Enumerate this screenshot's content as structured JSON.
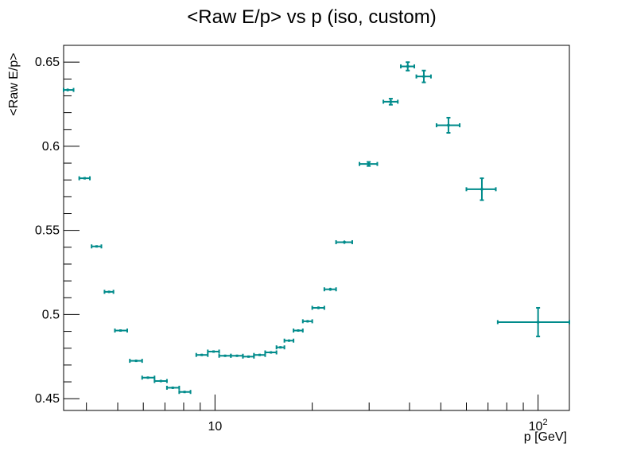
{
  "chart_data": {
    "type": "scatter",
    "title": "<Raw E/p> vs p (iso, custom)",
    "xlabel": "p [GeV]",
    "ylabel": "<Raw E/p>",
    "xscale": "log",
    "xlim": [
      3.4,
      125
    ],
    "ylim": [
      0.443,
      0.66
    ],
    "grid": false,
    "marker_color": "#008b8b",
    "y_ticks": [
      {
        "value": 0.45,
        "label": "0.45"
      },
      {
        "value": 0.5,
        "label": "0.5"
      },
      {
        "value": 0.55,
        "label": "0.55"
      },
      {
        "value": 0.6,
        "label": "0.6"
      },
      {
        "value": 0.65,
        "label": "0.65"
      }
    ],
    "x_ticks": [
      {
        "value": 10,
        "label": "10"
      },
      {
        "value": 100,
        "label": "10",
        "sup": "2"
      }
    ],
    "points": [
      {
        "x": 3.5,
        "xlo": 3.4,
        "xhi": 3.65,
        "y": 0.6335,
        "ey": 0.0008
      },
      {
        "x": 3.95,
        "xlo": 3.8,
        "xhi": 4.1,
        "y": 0.581,
        "ey": 0.0007
      },
      {
        "x": 4.3,
        "xlo": 4.15,
        "xhi": 4.45,
        "y": 0.5405,
        "ey": 0.0006
      },
      {
        "x": 4.7,
        "xlo": 4.55,
        "xhi": 4.85,
        "y": 0.5135,
        "ey": 0.0006
      },
      {
        "x": 5.1,
        "xlo": 4.9,
        "xhi": 5.35,
        "y": 0.4905,
        "ey": 0.0006
      },
      {
        "x": 5.7,
        "xlo": 5.45,
        "xhi": 5.95,
        "y": 0.4725,
        "ey": 0.0006
      },
      {
        "x": 6.2,
        "xlo": 5.95,
        "xhi": 6.5,
        "y": 0.4625,
        "ey": 0.0006
      },
      {
        "x": 6.8,
        "xlo": 6.5,
        "xhi": 7.1,
        "y": 0.4605,
        "ey": 0.0006
      },
      {
        "x": 7.4,
        "xlo": 7.1,
        "xhi": 7.75,
        "y": 0.4565,
        "ey": 0.0006
      },
      {
        "x": 8.05,
        "xlo": 7.75,
        "xhi": 8.4,
        "y": 0.454,
        "ey": 0.0006
      },
      {
        "x": 9.1,
        "xlo": 8.75,
        "xhi": 9.5,
        "y": 0.476,
        "ey": 0.0006
      },
      {
        "x": 9.9,
        "xlo": 9.5,
        "xhi": 10.3,
        "y": 0.478,
        "ey": 0.0006
      },
      {
        "x": 10.75,
        "xlo": 10.3,
        "xhi": 11.2,
        "y": 0.4755,
        "ey": 0.0006
      },
      {
        "x": 11.7,
        "xlo": 11.2,
        "xhi": 12.2,
        "y": 0.4755,
        "ey": 0.0006
      },
      {
        "x": 12.7,
        "xlo": 12.2,
        "xhi": 13.2,
        "y": 0.475,
        "ey": 0.0006
      },
      {
        "x": 13.75,
        "xlo": 13.2,
        "xhi": 14.3,
        "y": 0.476,
        "ey": 0.0006
      },
      {
        "x": 14.9,
        "xlo": 14.3,
        "xhi": 15.5,
        "y": 0.4775,
        "ey": 0.0006
      },
      {
        "x": 15.95,
        "xlo": 15.5,
        "xhi": 16.4,
        "y": 0.4805,
        "ey": 0.0006
      },
      {
        "x": 16.95,
        "xlo": 16.4,
        "xhi": 17.5,
        "y": 0.4845,
        "ey": 0.0006
      },
      {
        "x": 18.1,
        "xlo": 17.5,
        "xhi": 18.7,
        "y": 0.4905,
        "ey": 0.0007
      },
      {
        "x": 19.35,
        "xlo": 18.7,
        "xhi": 20.0,
        "y": 0.496,
        "ey": 0.0007
      },
      {
        "x": 20.9,
        "xlo": 20.0,
        "xhi": 21.8,
        "y": 0.504,
        "ey": 0.0008
      },
      {
        "x": 22.75,
        "xlo": 21.8,
        "xhi": 23.7,
        "y": 0.515,
        "ey": 0.0009
      },
      {
        "x": 25.15,
        "xlo": 23.7,
        "xhi": 26.6,
        "y": 0.543,
        "ey": 0.001
      },
      {
        "x": 29.9,
        "xlo": 28.0,
        "xhi": 31.8,
        "y": 0.5895,
        "ey": 0.0012
      },
      {
        "x": 35.0,
        "xlo": 33.2,
        "xhi": 36.8,
        "y": 0.6265,
        "ey": 0.0018
      },
      {
        "x": 39.5,
        "xlo": 37.6,
        "xhi": 41.4,
        "y": 0.6475,
        "ey": 0.0025
      },
      {
        "x": 44.3,
        "xlo": 42.0,
        "xhi": 46.6,
        "y": 0.6415,
        "ey": 0.0035
      },
      {
        "x": 52.8,
        "xlo": 48.5,
        "xhi": 57.2,
        "y": 0.6125,
        "ey": 0.0045
      },
      {
        "x": 67.0,
        "xlo": 60.0,
        "xhi": 74.0,
        "y": 0.5745,
        "ey": 0.0065
      },
      {
        "x": 100.0,
        "xlo": 75.0,
        "xhi": 125.0,
        "y": 0.4955,
        "ey": 0.0085
      }
    ]
  }
}
